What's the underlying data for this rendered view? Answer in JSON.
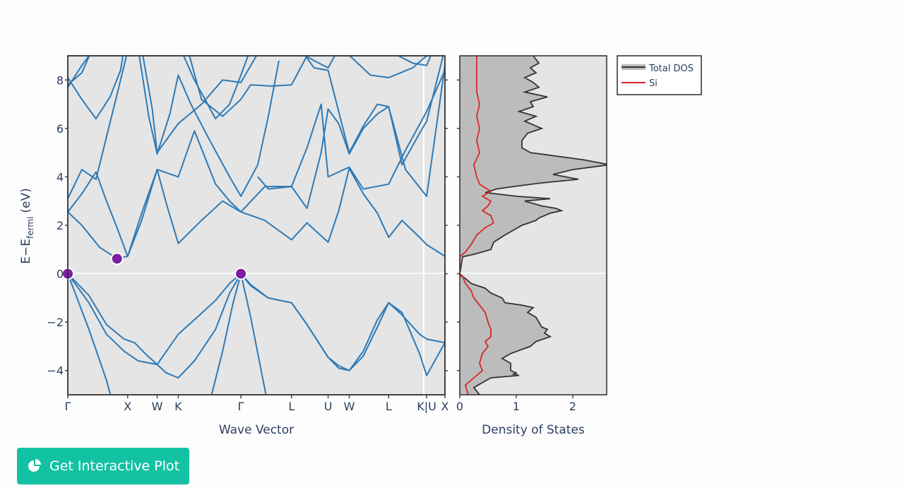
{
  "button": {
    "label": "Get Interactive Plot",
    "icon": "pie-chart-icon"
  },
  "colors": {
    "band": "#2e7ab6",
    "dos_total_line": "#333333",
    "dos_total_fill": "#bcbcbc",
    "dos_si": "#d62728",
    "extrema": "#7a1fa2",
    "plot_bg": "#e5e5e5",
    "button": "#13c2a3"
  },
  "chart_data": [
    {
      "type": "line",
      "title": "",
      "xlabel": "Wave Vector",
      "ylabel_main": "E−E",
      "ylabel_sub": "fermi",
      "ylabel_unit": "(eV)",
      "ylim": [
        -5,
        9
      ],
      "yticks": [
        -4,
        -2,
        0,
        2,
        4,
        6,
        8
      ],
      "ytick_labels": [
        "−4",
        "−2",
        "0",
        "2",
        "4",
        "6",
        "8"
      ],
      "kpoints": [
        {
          "label": "Γ",
          "x": 0.0
        },
        {
          "label": "X",
          "x": 0.85
        },
        {
          "label": "W",
          "x": 1.27
        },
        {
          "label": "K",
          "x": 1.57
        },
        {
          "label": "Γ",
          "x": 2.46
        },
        {
          "label": "L",
          "x": 3.18
        },
        {
          "label": "U",
          "x": 3.7
        },
        {
          "label": "W",
          "x": 4.0
        },
        {
          "label": "L",
          "x": 4.56
        },
        {
          "label": "K|U",
          "x": 5.1
        },
        {
          "label": "X",
          "x": 5.36
        }
      ],
      "xlim": [
        0,
        5.36
      ],
      "extrema": [
        {
          "name": "VBM",
          "x": 0.0,
          "y": 0.0
        },
        {
          "name": "CBM",
          "x": 0.7,
          "y": 0.62
        },
        {
          "name": "VBM",
          "x": 2.46,
          "y": 0.0
        }
      ],
      "bands": [
        [
          [
            0,
            0
          ],
          [
            0.3,
            -0.9
          ],
          [
            0.55,
            -2.1
          ],
          [
            0.8,
            -2.7
          ],
          [
            0.95,
            -2.85
          ],
          [
            1.1,
            -3.3
          ],
          [
            1.27,
            -3.75
          ],
          [
            1.4,
            -4.1
          ],
          [
            1.57,
            -4.3
          ],
          [
            1.8,
            -3.6
          ],
          [
            2.1,
            -2.3
          ],
          [
            2.3,
            -0.8
          ],
          [
            2.46,
            0
          ],
          [
            2.6,
            -0.45
          ],
          [
            2.85,
            -1
          ],
          [
            3.18,
            -1.2
          ],
          [
            3.4,
            -2.1
          ],
          [
            3.7,
            -3.45
          ],
          [
            3.85,
            -3.8
          ],
          [
            4.0,
            -4.0
          ],
          [
            4.2,
            -3.2
          ],
          [
            4.4,
            -1.9
          ],
          [
            4.56,
            -1.2
          ],
          [
            4.75,
            -1.7
          ],
          [
            5.0,
            -2.5
          ],
          [
            5.1,
            -2.7
          ],
          [
            5.36,
            -2.85
          ]
        ],
        [
          [
            0,
            0
          ],
          [
            0.3,
            -1.2
          ],
          [
            0.55,
            -2.5
          ],
          [
            0.8,
            -3.2
          ],
          [
            1.0,
            -3.6
          ],
          [
            1.27,
            -3.75
          ],
          [
            1.45,
            -3.0
          ],
          [
            1.57,
            -2.5
          ],
          [
            1.8,
            -1.9
          ],
          [
            2.1,
            -1.1
          ],
          [
            2.3,
            -0.4
          ],
          [
            2.46,
            0
          ],
          [
            2.6,
            -0.5
          ],
          [
            2.85,
            -1
          ],
          [
            3.18,
            -1.2
          ],
          [
            3.4,
            -2.1
          ],
          [
            3.7,
            -3.45
          ],
          [
            3.85,
            -3.9
          ],
          [
            4.0,
            -4.0
          ],
          [
            4.2,
            -3.4
          ],
          [
            4.4,
            -2.2
          ],
          [
            4.56,
            -1.2
          ],
          [
            4.75,
            -1.6
          ],
          [
            5.0,
            -3.3
          ],
          [
            5.1,
            -4.2
          ],
          [
            5.36,
            -2.85
          ]
        ],
        [
          [
            0,
            0
          ],
          [
            0.3,
            -2.3
          ],
          [
            0.55,
            -4.4
          ],
          [
            0.65,
            -5.5
          ]
        ],
        [
          [
            2.0,
            -5.5
          ],
          [
            2.2,
            -3.2
          ],
          [
            2.35,
            -1.2
          ],
          [
            2.46,
            0
          ],
          [
            2.6,
            -1.8
          ],
          [
            2.85,
            -5.5
          ]
        ],
        [
          [
            0,
            2.55
          ],
          [
            0.2,
            2.0
          ],
          [
            0.45,
            1.1
          ],
          [
            0.7,
            0.62
          ],
          [
            0.85,
            0.72
          ],
          [
            1.05,
            2.2
          ],
          [
            1.27,
            4.3
          ],
          [
            1.4,
            2.9
          ],
          [
            1.57,
            1.25
          ],
          [
            1.9,
            2.2
          ],
          [
            2.2,
            3.0
          ],
          [
            2.46,
            2.55
          ],
          [
            2.8,
            2.2
          ],
          [
            3.18,
            1.4
          ],
          [
            3.4,
            2.1
          ],
          [
            3.7,
            1.3
          ],
          [
            3.85,
            2.6
          ],
          [
            4.0,
            4.35
          ],
          [
            4.2,
            3.3
          ],
          [
            4.4,
            2.5
          ],
          [
            4.56,
            1.5
          ],
          [
            4.75,
            2.2
          ],
          [
            5.0,
            1.5
          ],
          [
            5.1,
            1.2
          ],
          [
            5.36,
            0.72
          ]
        ],
        [
          [
            0,
            2.55
          ],
          [
            0.2,
            3.3
          ],
          [
            0.4,
            4.2
          ],
          [
            0.55,
            3.0
          ],
          [
            0.7,
            1.9
          ],
          [
            0.85,
            0.72
          ],
          [
            1.05,
            2.5
          ],
          [
            1.27,
            4.3
          ],
          [
            1.57,
            4.0
          ],
          [
            1.8,
            5.9
          ],
          [
            2.1,
            3.7
          ],
          [
            2.3,
            3.0
          ],
          [
            2.46,
            2.55
          ],
          [
            2.8,
            3.6
          ],
          [
            3.18,
            3.6
          ],
          [
            3.4,
            5.2
          ],
          [
            3.6,
            7.0
          ],
          [
            3.7,
            4.0
          ],
          [
            4.0,
            4.4
          ],
          [
            4.2,
            3.5
          ],
          [
            4.56,
            3.7
          ],
          [
            4.8,
            5.1
          ],
          [
            5.1,
            6.7
          ],
          [
            5.36,
            8.4
          ]
        ],
        [
          [
            0,
            3.1
          ],
          [
            0.2,
            4.3
          ],
          [
            0.4,
            3.9
          ],
          [
            0.7,
            7.4
          ],
          [
            0.85,
            9.2
          ]
        ],
        [
          [
            0,
            7.7
          ],
          [
            0.2,
            8.6
          ],
          [
            0.35,
            9.2
          ]
        ],
        [
          [
            0,
            8.1
          ],
          [
            0.2,
            7.2
          ],
          [
            0.4,
            6.4
          ],
          [
            0.6,
            7.3
          ],
          [
            0.75,
            8.4
          ],
          [
            0.8,
            9.3
          ]
        ],
        [
          [
            0,
            7.8
          ],
          [
            0.2,
            8.3
          ],
          [
            0.35,
            9.3
          ]
        ],
        [
          [
            1.0,
            9.3
          ],
          [
            1.15,
            6.5
          ],
          [
            1.27,
            4.95
          ],
          [
            1.45,
            6.6
          ],
          [
            1.57,
            8.2
          ],
          [
            1.75,
            7.0
          ],
          [
            2.0,
            5.6
          ],
          [
            2.3,
            4.0
          ],
          [
            2.46,
            3.2
          ],
          [
            2.7,
            4.5
          ],
          [
            2.85,
            6.5
          ],
          [
            3.0,
            8.8
          ]
        ],
        [
          [
            1.05,
            9.3
          ],
          [
            1.2,
            6.8
          ],
          [
            1.27,
            5.0
          ],
          [
            1.57,
            6.2
          ],
          [
            1.9,
            7.0
          ],
          [
            2.2,
            8.0
          ],
          [
            2.46,
            7.9
          ],
          [
            2.7,
            9.1
          ]
        ],
        [
          [
            1.6,
            9.3
          ],
          [
            1.8,
            8.0
          ],
          [
            2.1,
            6.4
          ],
          [
            2.3,
            7.0
          ],
          [
            2.46,
            8.2
          ],
          [
            2.6,
            9.3
          ]
        ],
        [
          [
            1.7,
            9.3
          ],
          [
            1.9,
            7.2
          ],
          [
            2.2,
            6.5
          ],
          [
            2.46,
            7.2
          ],
          [
            2.6,
            7.8
          ],
          [
            2.9,
            7.75
          ],
          [
            3.18,
            7.8
          ],
          [
            3.4,
            9.0
          ]
        ],
        [
          [
            2.7,
            4.0
          ],
          [
            2.85,
            3.5
          ],
          [
            3.18,
            3.6
          ],
          [
            3.4,
            2.7
          ],
          [
            3.6,
            5.0
          ],
          [
            3.7,
            6.8
          ],
          [
            3.85,
            6.2
          ],
          [
            4.0,
            4.95
          ],
          [
            4.2,
            6.0
          ],
          [
            4.4,
            6.6
          ],
          [
            4.56,
            6.9
          ],
          [
            4.8,
            4.3
          ],
          [
            5.1,
            3.2
          ],
          [
            5.36,
            8.6
          ]
        ],
        [
          [
            3.3,
            9.3
          ],
          [
            3.5,
            8.5
          ],
          [
            3.7,
            8.4
          ],
          [
            4.0,
            5.0
          ],
          [
            4.2,
            6.1
          ],
          [
            4.4,
            7.0
          ],
          [
            4.56,
            6.9
          ],
          [
            4.75,
            4.5
          ],
          [
            5.0,
            5.8
          ],
          [
            5.1,
            6.3
          ],
          [
            5.36,
            9.3
          ]
        ],
        [
          [
            3.2,
            9.3
          ],
          [
            3.5,
            8.8
          ],
          [
            3.7,
            8.5
          ],
          [
            3.85,
            9.3
          ]
        ],
        [
          [
            3.9,
            9.3
          ],
          [
            4.3,
            8.2
          ],
          [
            4.56,
            8.1
          ],
          [
            4.9,
            8.5
          ],
          [
            5.1,
            9.0
          ],
          [
            5.36,
            9.2
          ]
        ],
        [
          [
            4.5,
            9.3
          ],
          [
            4.7,
            9.0
          ],
          [
            4.9,
            8.7
          ],
          [
            5.1,
            8.6
          ],
          [
            5.2,
            9.3
          ]
        ]
      ]
    },
    {
      "type": "area",
      "xlabel": "Density of States",
      "xlim": [
        0,
        2.6
      ],
      "xticks": [
        0,
        1,
        2
      ],
      "ylim": [
        -5,
        9
      ],
      "series": [
        {
          "name": "Total DOS",
          "e": [
            -5.0,
            -4.7,
            -4.3,
            -4.2,
            -4.15,
            -4.1,
            -4.0,
            -3.7,
            -3.5,
            -3.3,
            -3.0,
            -2.8,
            -2.6,
            -2.45,
            -2.3,
            -2.2,
            -2.0,
            -1.8,
            -1.6,
            -1.4,
            -1.3,
            -1.2,
            -1.0,
            -0.8,
            -0.6,
            -0.4,
            -0.2,
            -0.05,
            0.0,
            0.7,
            0.8,
            0.9,
            1.0,
            1.3,
            1.6,
            1.8,
            2.0,
            2.2,
            2.3,
            2.5,
            2.6,
            2.7,
            2.8,
            3.0,
            3.1,
            3.2,
            3.35,
            3.5,
            3.6,
            3.75,
            3.9,
            4.1,
            4.3,
            4.5,
            4.7,
            5.0,
            5.2,
            5.5,
            5.8,
            6.0,
            6.3,
            6.5,
            6.7,
            6.9,
            7.1,
            7.3,
            7.5,
            7.7,
            7.9,
            8.1,
            8.3,
            8.5,
            8.7,
            9.0
          ],
          "v": [
            0.35,
            0.25,
            0.55,
            1.05,
            0.95,
            1.0,
            0.9,
            0.9,
            0.75,
            0.9,
            1.25,
            1.35,
            1.6,
            1.5,
            1.55,
            1.45,
            1.4,
            1.35,
            1.2,
            1.3,
            1.1,
            0.8,
            0.75,
            0.55,
            0.45,
            0.2,
            0.1,
            0.0,
            0.0,
            0.05,
            0.25,
            0.4,
            0.55,
            0.6,
            0.8,
            0.95,
            1.1,
            1.35,
            1.4,
            1.6,
            1.8,
            1.7,
            1.45,
            1.15,
            1.6,
            1.0,
            0.45,
            0.65,
            0.95,
            1.45,
            2.1,
            1.65,
            2.0,
            2.65,
            2.2,
            1.25,
            1.1,
            1.1,
            1.2,
            1.45,
            1.15,
            1.35,
            1.05,
            1.3,
            1.25,
            1.55,
            1.15,
            1.4,
            1.3,
            1.15,
            1.35,
            1.25,
            1.4,
            1.3
          ]
        },
        {
          "name": "Si",
          "e": [
            -5.0,
            -4.6,
            -4.3,
            -4.0,
            -3.7,
            -3.3,
            -3.0,
            -2.8,
            -2.6,
            -2.3,
            -2.0,
            -1.6,
            -1.3,
            -1.0,
            -0.7,
            -0.4,
            -0.1,
            0.0,
            0.7,
            0.9,
            1.2,
            1.6,
            1.9,
            2.1,
            2.4,
            2.6,
            2.8,
            3.0,
            3.2,
            3.4,
            3.7,
            4.0,
            4.5,
            5.0,
            5.5,
            6.0,
            6.5,
            7.0,
            7.5,
            8.0,
            8.5,
            9.0
          ],
          "v": [
            0.15,
            0.1,
            0.25,
            0.4,
            0.35,
            0.4,
            0.5,
            0.45,
            0.55,
            0.55,
            0.5,
            0.45,
            0.35,
            0.25,
            0.2,
            0.1,
            0.05,
            0.0,
            0.0,
            0.1,
            0.2,
            0.3,
            0.45,
            0.6,
            0.55,
            0.4,
            0.5,
            0.55,
            0.4,
            0.55,
            0.35,
            0.3,
            0.25,
            0.35,
            0.3,
            0.35,
            0.3,
            0.35,
            0.3,
            0.3,
            0.3,
            0.3
          ]
        }
      ],
      "legend": {
        "placement": "top-right",
        "entries": [
          "Total DOS",
          "Si"
        ]
      }
    }
  ]
}
